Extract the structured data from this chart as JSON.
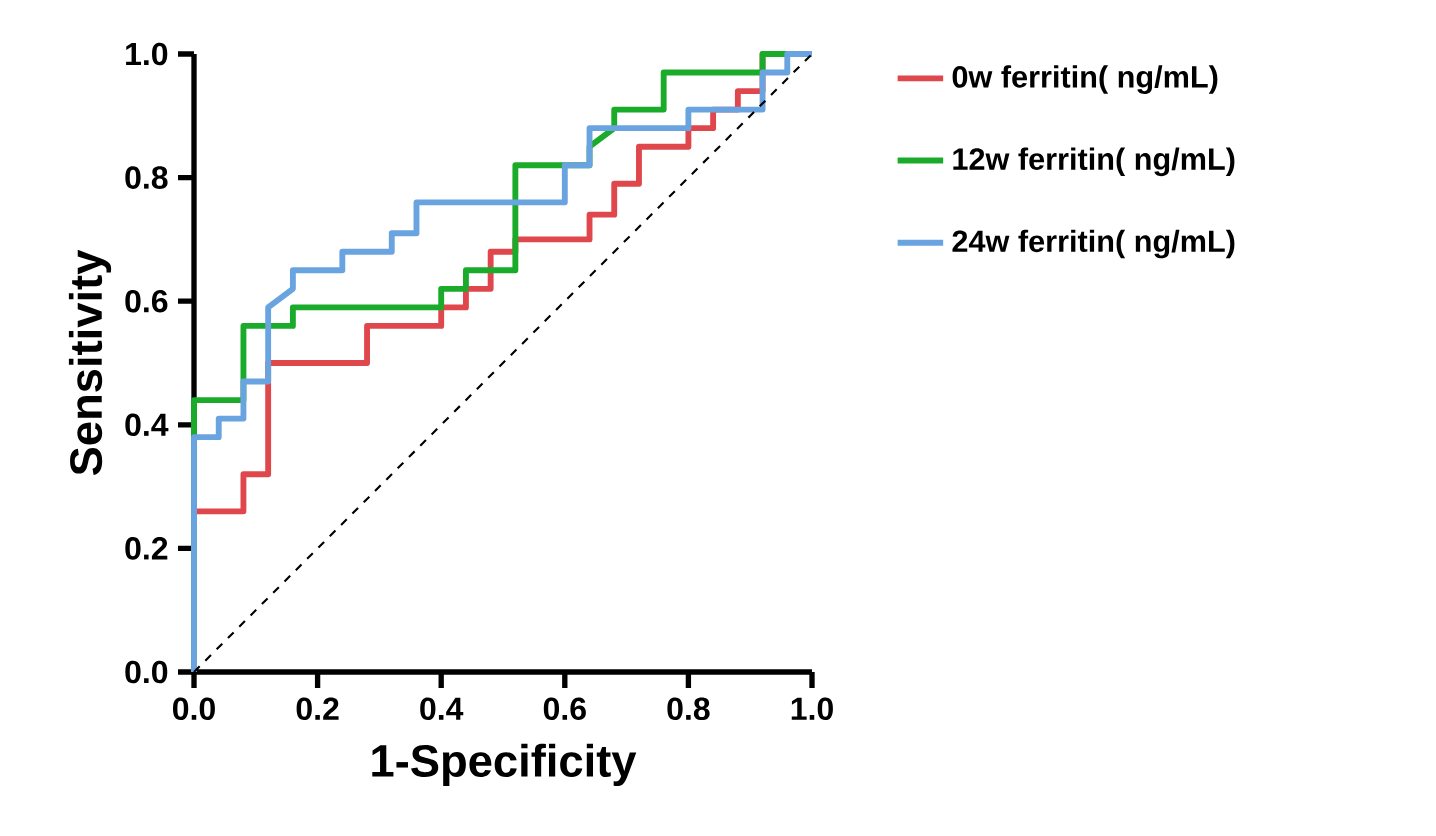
{
  "chart_data": {
    "type": "line",
    "xlabel": "1-Specificity",
    "ylabel": "Sensitivity",
    "xlim": [
      0,
      1
    ],
    "ylim": [
      0,
      1
    ],
    "xticks": [
      {
        "value": 0,
        "label": "0.0"
      },
      {
        "value": 0.2,
        "label": "0.2"
      },
      {
        "value": 0.4,
        "label": "0.4"
      },
      {
        "value": 0.6,
        "label": "0.6"
      },
      {
        "value": 0.8,
        "label": "0.8"
      },
      {
        "value": 1,
        "label": "1.0"
      }
    ],
    "yticks": [
      {
        "value": 0,
        "label": "0.0"
      },
      {
        "value": 0.2,
        "label": "0.2"
      },
      {
        "value": 0.4,
        "label": "0.4"
      },
      {
        "value": 0.6,
        "label": "0.6"
      },
      {
        "value": 0.8,
        "label": "0.8"
      },
      {
        "value": 1,
        "label": "1.0"
      }
    ],
    "grid": false,
    "legend": "right",
    "series": [
      {
        "name": "0w ferritin( ng/mL)",
        "color": "#e0474c",
        "x": [
          0,
          0,
          0.08,
          0.08,
          0.12,
          0.12,
          0.28,
          0.28,
          0.4,
          0.4,
          0.44,
          0.44,
          0.48,
          0.48,
          0.52,
          0.52,
          0.64,
          0.64,
          0.68,
          0.68,
          0.72,
          0.72,
          0.8,
          0.8,
          0.84,
          0.84,
          0.88,
          0.88,
          0.92,
          0.92,
          1
        ],
        "values": [
          0,
          0.26,
          0.26,
          0.32,
          0.32,
          0.5,
          0.5,
          0.56,
          0.56,
          0.59,
          0.59,
          0.62,
          0.62,
          0.68,
          0.68,
          0.7,
          0.7,
          0.74,
          0.74,
          0.79,
          0.79,
          0.85,
          0.85,
          0.88,
          0.88,
          0.91,
          0.91,
          0.94,
          0.94,
          1,
          1
        ]
      },
      {
        "name": "12w ferritin( ng/mL)",
        "color": "#1aab2a",
        "x": [
          0,
          0,
          0.08,
          0.08,
          0.16,
          0.16,
          0.4,
          0.4,
          0.44,
          0.44,
          0.52,
          0.52,
          0.64,
          0.64,
          0.68,
          0.68,
          0.76,
          0.76,
          0.92,
          0.92,
          1
        ],
        "values": [
          0,
          0.44,
          0.44,
          0.56,
          0.56,
          0.59,
          0.59,
          0.62,
          0.62,
          0.65,
          0.65,
          0.82,
          0.82,
          0.85,
          0.88,
          0.91,
          0.91,
          0.97,
          0.97,
          1,
          1
        ]
      },
      {
        "name": "24w ferritin( ng/mL)",
        "color": "#6aa4e0",
        "x": [
          0,
          0,
          0.04,
          0.04,
          0.08,
          0.08,
          0.12,
          0.12,
          0.16,
          0.16,
          0.24,
          0.24,
          0.32,
          0.32,
          0.36,
          0.36,
          0.6,
          0.6,
          0.64,
          0.64,
          0.8,
          0.8,
          0.92,
          0.92,
          0.96,
          0.96,
          1
        ],
        "values": [
          0,
          0.38,
          0.38,
          0.41,
          0.41,
          0.47,
          0.47,
          0.59,
          0.62,
          0.65,
          0.65,
          0.68,
          0.68,
          0.71,
          0.71,
          0.76,
          0.76,
          0.82,
          0.82,
          0.88,
          0.88,
          0.91,
          0.91,
          0.97,
          0.97,
          1,
          1
        ]
      },
      {
        "color": "#000000",
        "line_style": "dashed",
        "x": [
          0,
          1
        ],
        "values": [
          0,
          1
        ]
      }
    ]
  }
}
